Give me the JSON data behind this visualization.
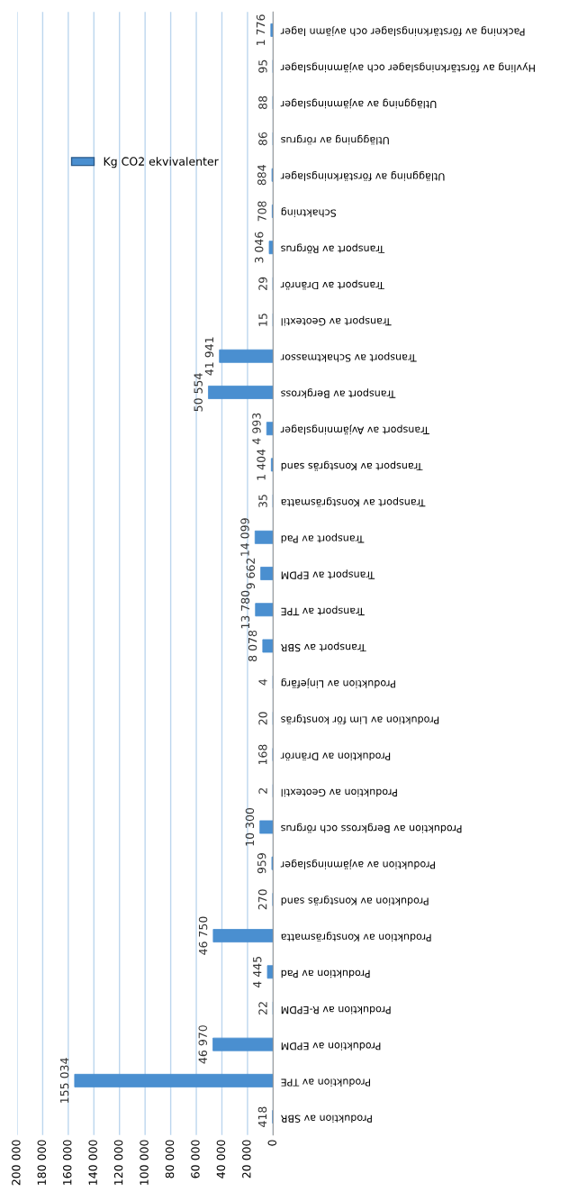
{
  "chart_data": {
    "type": "bar",
    "orientation": "horizontal",
    "categories": [
      "Packning av förstärkningslager och avjämn lager",
      "Hyvling av förstärkningslager och avjämningslager",
      "Utläggning av avjämningslager",
      "Utläggning av rörgrus",
      "Utläggning av förstärkningslager",
      "Schaktning",
      "Transport av Rörgrus",
      "Transport av Dränrör",
      "Transport av Geotextil",
      "Transport av Schaktmassor",
      "Transport av Bergkross",
      "Transport av Avjämningslager",
      "Transport av Konstgräs sand",
      "Transport av Konstgräsmatta",
      "Transport av Pad",
      "Transport av EPDM",
      "Transport av TPE",
      "Transport av SBR",
      "Produktion av Linjefärg",
      "Produktion av Lim för konstgräs",
      "Produktion av Dränrör",
      "Produktion av Geotextil",
      "Produktion av Bergkross och rörgrus",
      "Produktion av avjämningslager",
      "Produktion av Konstgräs sand",
      "Produktion av Konstgräsmatta",
      "Produktion av Pad",
      "Produktion av R-EPDM",
      "Produktion av EPDM",
      "Produktion av TPE",
      "Produktion av SBR"
    ],
    "series": [
      {
        "name": "Kg CO2 ekvivalenter",
        "color": "#4a8fd0",
        "values": [
          1776,
          95,
          88,
          86,
          884,
          708,
          3046,
          29,
          15,
          41941,
          50554,
          4993,
          1404,
          35,
          14099,
          9662,
          13780,
          8078,
          4,
          20,
          168,
          2,
          10300,
          959,
          270,
          46750,
          4445,
          22,
          46970,
          155034,
          418
        ],
        "value_labels": [
          "1 776",
          "95",
          "88",
          "86",
          "884",
          "708",
          "3 046",
          "29",
          "15",
          "41 941",
          "50 554",
          "4 993",
          "1 404",
          "35",
          "14 099",
          "9 662",
          "13 780",
          "8 078",
          "4",
          "20",
          "168",
          "2",
          "10 300",
          "959",
          "270",
          "46 750",
          "4 445",
          "22",
          "46 970",
          "155 034",
          "418"
        ]
      }
    ],
    "xlim": [
      200000,
      0
    ],
    "xticks": [
      {
        "value": 200000,
        "label": "200 000"
      },
      {
        "value": 180000,
        "label": "180 000"
      },
      {
        "value": 160000,
        "label": "160 000"
      },
      {
        "value": 140000,
        "label": "140 000"
      },
      {
        "value": 120000,
        "label": "120 000"
      },
      {
        "value": 100000,
        "label": "100 000"
      },
      {
        "value": 80000,
        "label": "80 000"
      },
      {
        "value": 60000,
        "label": "60 000"
      },
      {
        "value": 40000,
        "label": "40 000"
      },
      {
        "value": 20000,
        "label": "20 000"
      },
      0
    ],
    "grid": "x",
    "legend": "top"
  }
}
